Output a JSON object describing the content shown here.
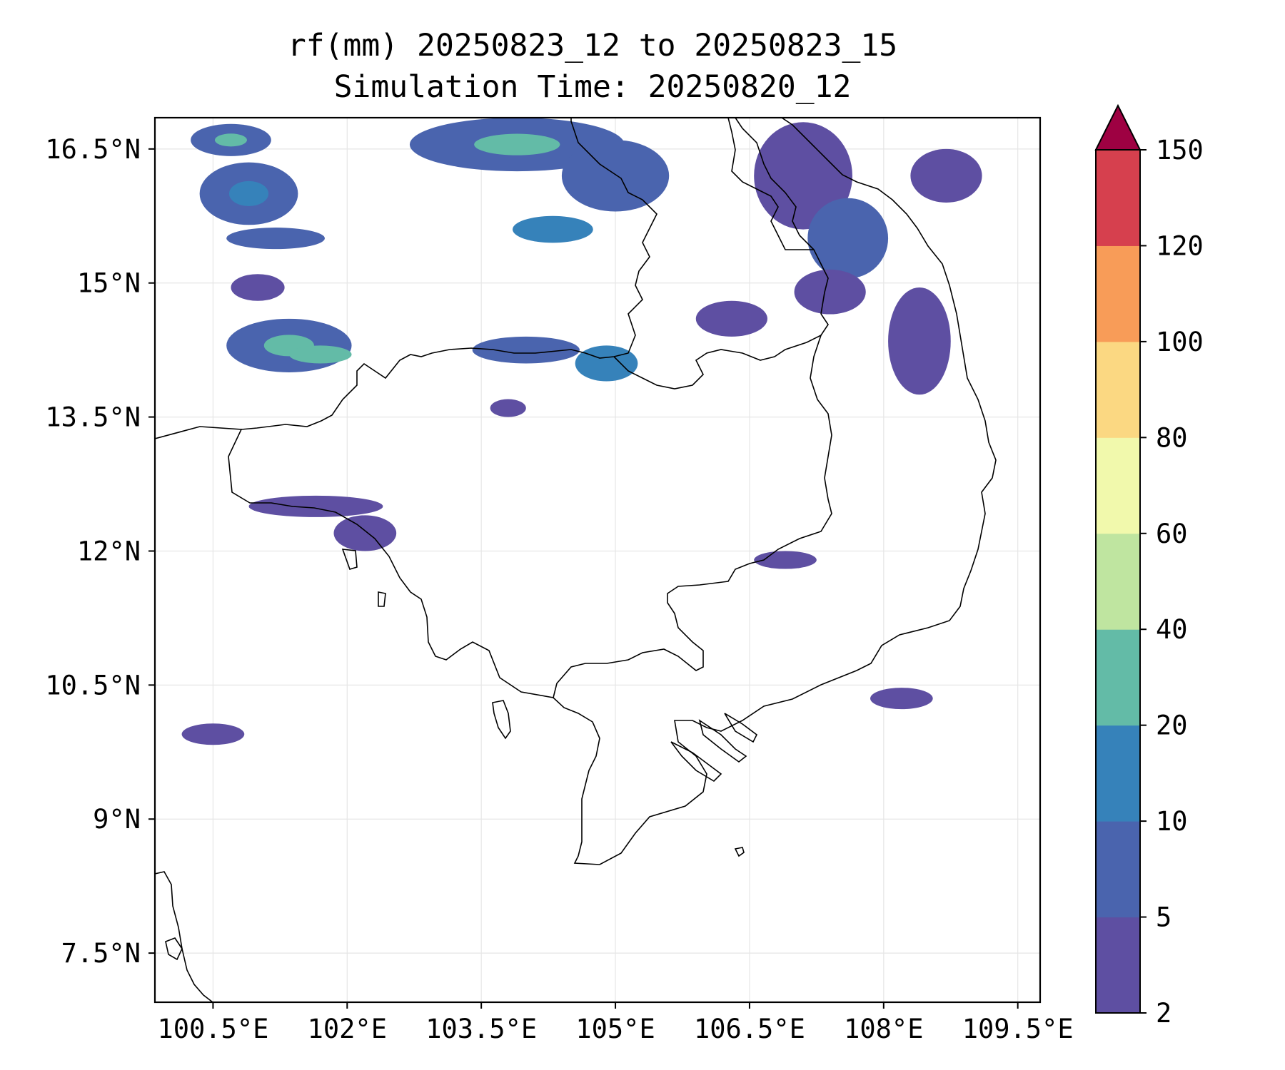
{
  "map": {
    "title": "rf(mm) 20250823_12 to 20250823_15",
    "subtitle": "Simulation Time: 20250820_12",
    "variable": "rf(mm)",
    "lon_range": [
      99.85,
      109.75
    ],
    "lat_range": [
      6.95,
      16.85
    ],
    "x_ticks": [
      {
        "value": 100.5,
        "label": "100.5°E"
      },
      {
        "value": 102.0,
        "label": "102°E"
      },
      {
        "value": 103.5,
        "label": "103.5°E"
      },
      {
        "value": 105.0,
        "label": "105°E"
      },
      {
        "value": 106.5,
        "label": "106.5°E"
      },
      {
        "value": 108.0,
        "label": "108°E"
      },
      {
        "value": 109.5,
        "label": "109.5°E"
      }
    ],
    "y_ticks": [
      {
        "value": 16.5,
        "label": "16.5°N"
      },
      {
        "value": 15.0,
        "label": "15°N"
      },
      {
        "value": 13.5,
        "label": "13.5°N"
      },
      {
        "value": 12.0,
        "label": "12°N"
      },
      {
        "value": 10.5,
        "label": "10.5°N"
      },
      {
        "value": 9.0,
        "label": "9°N"
      },
      {
        "value": 7.5,
        "label": "7.5°N"
      }
    ],
    "grid": true
  },
  "colorbar": {
    "levels": [
      "2",
      "5",
      "10",
      "20",
      "40",
      "60",
      "80",
      "100",
      "120",
      "150"
    ],
    "colors": [
      "#5e4fa2",
      "#4a64ae",
      "#3682ba",
      "#63bba7",
      "#bfe5a0",
      "#f1f9ac",
      "#fbd882",
      "#f89c58",
      "#d6404e",
      "#9e0142"
    ],
    "extend": "max"
  },
  "rain_areas": [
    {
      "lon": 100.7,
      "lat": 16.6,
      "rx": 0.45,
      "ry": 0.18,
      "level": 1,
      "core": 3
    },
    {
      "lon": 100.9,
      "lat": 16.0,
      "rx": 0.55,
      "ry": 0.35,
      "level": 1,
      "core": 2
    },
    {
      "lon": 101.2,
      "lat": 15.5,
      "rx": 0.55,
      "ry": 0.12,
      "level": 1
    },
    {
      "lon": 101.0,
      "lat": 14.95,
      "rx": 0.3,
      "ry": 0.15,
      "level": 0
    },
    {
      "lon": 101.35,
      "lat": 14.3,
      "rx": 0.7,
      "ry": 0.3,
      "level": 1,
      "core": 3
    },
    {
      "lon": 101.7,
      "lat": 14.2,
      "rx": 0.35,
      "ry": 0.1,
      "level": 3
    },
    {
      "lon": 103.9,
      "lat": 16.55,
      "rx": 1.2,
      "ry": 0.3,
      "level": 1,
      "core": 3
    },
    {
      "lon": 104.3,
      "lat": 15.6,
      "rx": 0.45,
      "ry": 0.15,
      "level": 2
    },
    {
      "lon": 105.0,
      "lat": 16.2,
      "rx": 0.6,
      "ry": 0.4,
      "level": 1
    },
    {
      "lon": 104.0,
      "lat": 14.25,
      "rx": 0.6,
      "ry": 0.15,
      "level": 1
    },
    {
      "lon": 104.9,
      "lat": 14.1,
      "rx": 0.35,
      "ry": 0.2,
      "level": 2
    },
    {
      "lon": 107.1,
      "lat": 16.2,
      "rx": 0.55,
      "ry": 0.6,
      "level": 0
    },
    {
      "lon": 107.6,
      "lat": 15.5,
      "rx": 0.45,
      "ry": 0.45,
      "level": 1
    },
    {
      "lon": 108.4,
      "lat": 14.35,
      "rx": 0.35,
      "ry": 0.6,
      "level": 0
    },
    {
      "lon": 107.4,
      "lat": 14.9,
      "rx": 0.4,
      "ry": 0.25,
      "level": 0
    },
    {
      "lon": 108.7,
      "lat": 16.2,
      "rx": 0.4,
      "ry": 0.3,
      "level": 0
    },
    {
      "lon": 101.65,
      "lat": 12.5,
      "rx": 0.75,
      "ry": 0.12,
      "level": 0
    },
    {
      "lon": 102.2,
      "lat": 12.2,
      "rx": 0.35,
      "ry": 0.2,
      "level": 0
    },
    {
      "lon": 106.9,
      "lat": 11.9,
      "rx": 0.35,
      "ry": 0.1,
      "level": 0
    },
    {
      "lon": 108.2,
      "lat": 10.35,
      "rx": 0.35,
      "ry": 0.12,
      "level": 0
    },
    {
      "lon": 100.5,
      "lat": 9.95,
      "rx": 0.35,
      "ry": 0.12,
      "level": 0
    },
    {
      "lon": 103.8,
      "lat": 13.6,
      "rx": 0.2,
      "ry": 0.1,
      "level": 0
    },
    {
      "lon": 106.3,
      "lat": 14.6,
      "rx": 0.4,
      "ry": 0.2,
      "level": 0
    }
  ]
}
